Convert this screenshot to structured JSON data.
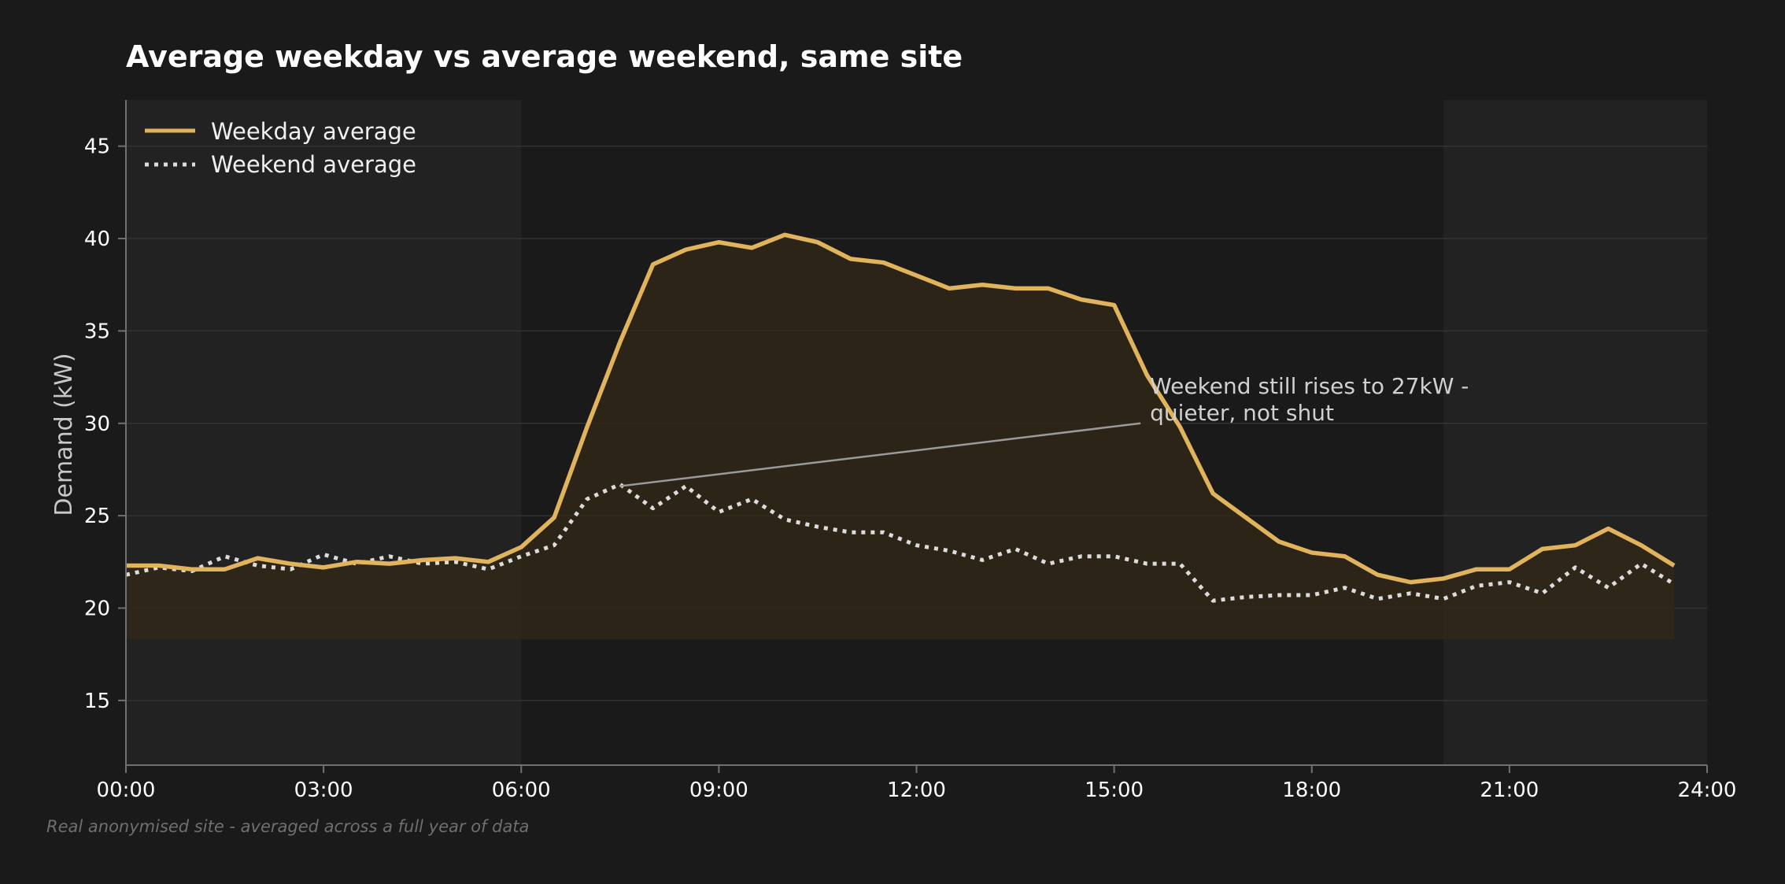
{
  "chart_data": {
    "type": "line",
    "title": "Average weekday vs average weekend, same site",
    "ylabel": "Demand (kW)",
    "xlabel": "",
    "footnote": "Real anonymised site - averaged across a full year of data",
    "x_ticks": [
      "00:00",
      "03:00",
      "06:00",
      "09:00",
      "12:00",
      "15:00",
      "18:00",
      "21:00",
      "24:00"
    ],
    "y_ticks": [
      15,
      20,
      25,
      30,
      35,
      40,
      45
    ],
    "xlim": [
      0,
      24
    ],
    "ylim": [
      11.5,
      47.5
    ],
    "grid": "horizontal",
    "legend": "top-left",
    "fill_baseline": 18.3,
    "shaded_hours": [
      [
        0,
        6
      ],
      [
        20,
        24
      ]
    ],
    "x": [
      0,
      0.5,
      1,
      1.5,
      2,
      2.5,
      3,
      3.5,
      4,
      4.5,
      5,
      5.5,
      6,
      6.5,
      7,
      7.5,
      8,
      8.5,
      9,
      9.5,
      10,
      10.5,
      11,
      11.5,
      12,
      12.5,
      13,
      13.5,
      14,
      14.5,
      15,
      15.5,
      16,
      16.5,
      17,
      17.5,
      18,
      18.5,
      19,
      19.5,
      20,
      20.5,
      21,
      21.5,
      22,
      22.5,
      23,
      23.5
    ],
    "series": [
      {
        "name": "Weekday average",
        "style": "solid",
        "color": "#e0b35c",
        "values": [
          22.3,
          22.3,
          22.1,
          22.1,
          22.7,
          22.4,
          22.2,
          22.5,
          22.4,
          22.6,
          22.7,
          22.5,
          23.3,
          24.9,
          29.8,
          34.4,
          38.6,
          39.4,
          39.8,
          39.5,
          40.2,
          39.8,
          38.9,
          38.7,
          38.0,
          37.3,
          37.5,
          37.3,
          37.3,
          36.7,
          36.4,
          32.6,
          29.8,
          26.2,
          24.9,
          23.6,
          23.0,
          22.8,
          21.8,
          21.4,
          21.6,
          22.1,
          22.1,
          23.2,
          23.4,
          24.3,
          23.4,
          22.3
        ]
      },
      {
        "name": "Weekend average",
        "style": "dotted",
        "color": "#dcdcdc",
        "values": [
          21.8,
          22.2,
          22.0,
          22.8,
          22.3,
          22.1,
          22.9,
          22.4,
          22.8,
          22.4,
          22.5,
          22.1,
          22.8,
          23.4,
          25.9,
          26.7,
          25.4,
          26.6,
          25.2,
          25.9,
          24.8,
          24.4,
          24.1,
          24.1,
          23.4,
          23.1,
          22.6,
          23.2,
          22.4,
          22.8,
          22.8,
          22.4,
          22.4,
          20.4,
          20.6,
          20.7,
          20.7,
          21.1,
          20.5,
          20.8,
          20.5,
          21.2,
          21.4,
          20.8,
          22.2,
          21.1,
          22.4,
          21.3
        ]
      }
    ],
    "annotation": {
      "text_lines": [
        "Weekend still rises to 27kW -",
        "quieter, not shut"
      ],
      "point": [
        7.5,
        26.6
      ],
      "text_anchor": [
        15.4,
        30.0
      ]
    },
    "colors": {
      "background": "#1a1a1a",
      "shaded": "#222222",
      "grid": "#333333",
      "axis": "#707070",
      "fill": "#302818"
    }
  }
}
